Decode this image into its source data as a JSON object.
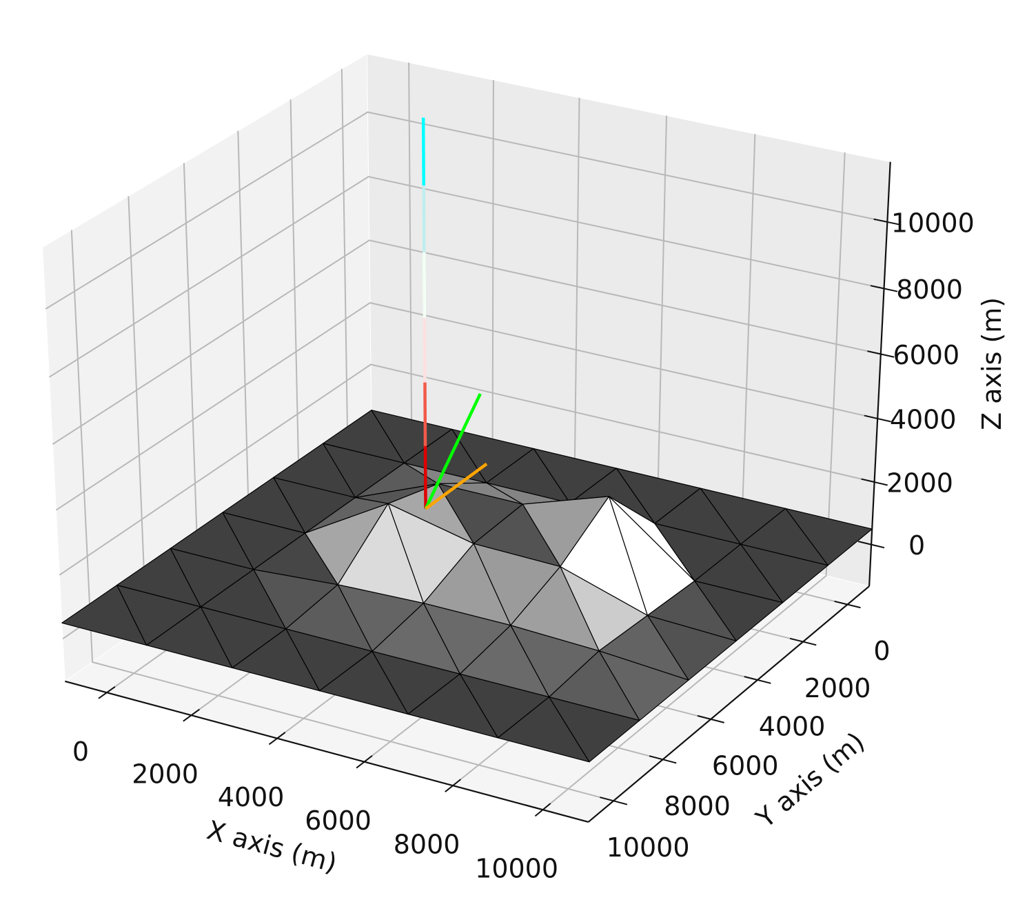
{
  "chart_data": {
    "type": "surface3d",
    "x_label": "X axis (m)",
    "y_label": "Y axis (m)",
    "z_label": "Z axis (m)",
    "xlim": [
      -1000,
      11000
    ],
    "ylim": [
      11000,
      -1000
    ],
    "zlim": [
      -1350,
      11780
    ],
    "xticks": [
      0,
      2000,
      4000,
      6000,
      8000,
      10000
    ],
    "yticks": [
      0,
      2000,
      4000,
      6000,
      8000,
      10000
    ],
    "zticks": [
      0,
      2000,
      4000,
      6000,
      8000,
      10000
    ],
    "grid": true,
    "surface": {
      "color": "#404040",
      "x": [
        -1000,
        1000,
        3000,
        5000,
        7000,
        9000,
        11000
      ],
      "y": [
        -1000,
        1000,
        3000,
        5000,
        7000,
        9000,
        11000
      ],
      "z": [
        [
          500,
          500,
          500,
          500,
          500,
          500,
          500
        ],
        [
          500,
          500,
          500,
          500,
          500,
          500,
          500
        ],
        [
          500,
          500,
          1600,
          1600,
          2500,
          500,
          500
        ],
        [
          500,
          500,
          2100,
          1500,
          1450,
          600,
          500
        ],
        [
          500,
          500,
          700,
          800,
          800,
          700,
          500
        ],
        [
          500,
          500,
          500,
          500,
          500,
          500,
          500
        ],
        [
          500,
          500,
          500,
          500,
          500,
          500,
          500
        ]
      ]
    },
    "profile": {
      "x": 2700,
      "y": 3000,
      "z": [
        700,
        2700,
        4700,
        6700,
        8700,
        10700,
        12700
      ],
      "colors": [
        "#e00000",
        "#f25a4a",
        "#fde0e0",
        "#f2fff5",
        "#bfeeee",
        "#00ffff"
      ]
    },
    "lines": [
      {
        "color": "#00ff00",
        "x": [
          2700,
          4000
        ],
        "y": [
          3000,
          3000
        ],
        "z": [
          700,
          4750
        ]
      },
      {
        "color": "#ffa500",
        "x": [
          2700,
          4150
        ],
        "y": [
          3000,
          3000
        ],
        "z": [
          700,
          2600
        ]
      }
    ]
  }
}
